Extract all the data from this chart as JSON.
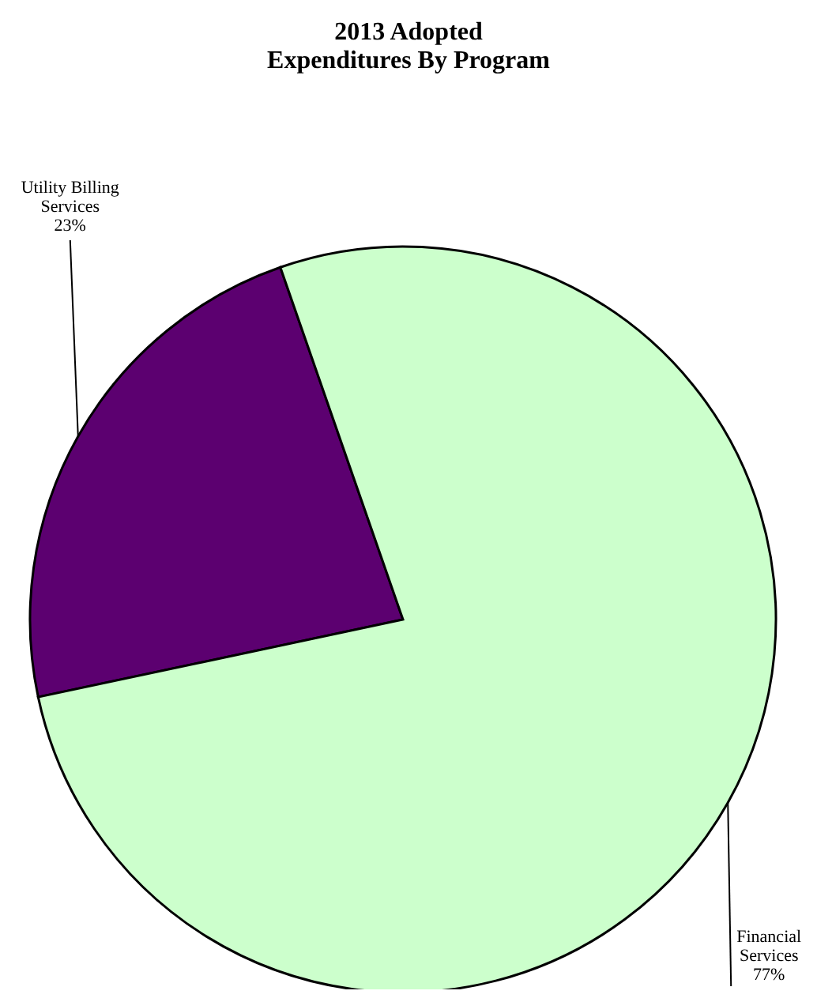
{
  "chart_data": {
    "type": "pie",
    "title": "2013 Adopted\nExpenditures By Program",
    "categories": [
      "Utility Billing Services",
      "Financial Services"
    ],
    "values": [
      23,
      77
    ],
    "value_labels": [
      "23%",
      "77%"
    ],
    "colors": [
      "#5c0070",
      "#ccffcc"
    ]
  }
}
